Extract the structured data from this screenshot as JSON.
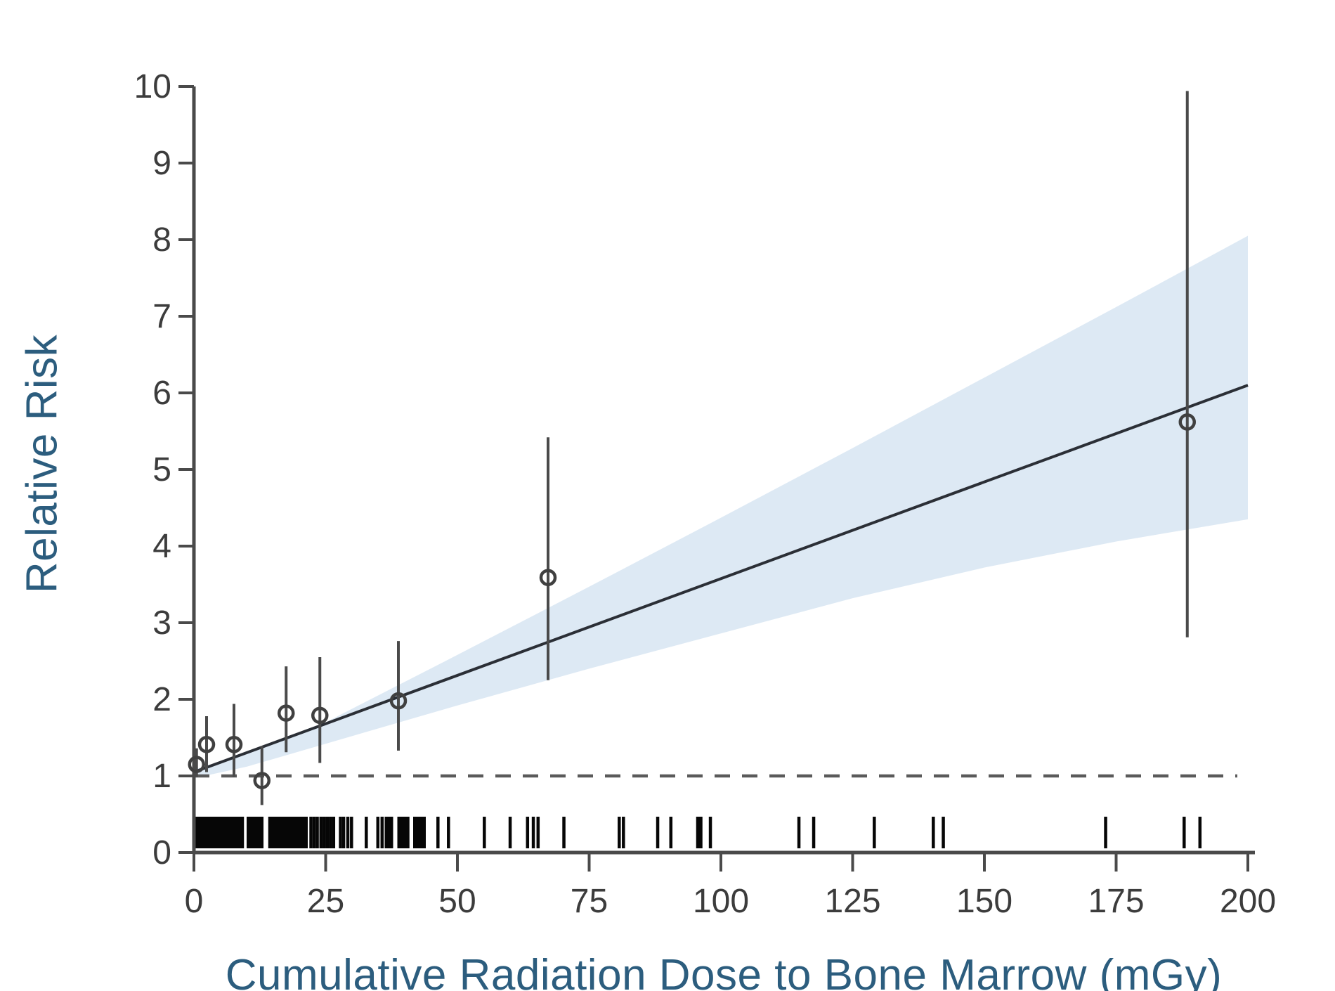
{
  "chart_data": {
    "type": "scatter",
    "title": "",
    "xlabel": "Cumulative Radiation Dose to Bone Marrow (mGy)",
    "ylabel": "Relative Risk",
    "xlim": [
      0,
      200
    ],
    "ylim": [
      0,
      10
    ],
    "x_ticks": [
      0,
      25,
      50,
      75,
      100,
      125,
      150,
      175,
      200
    ],
    "y_ticks": [
      0,
      1,
      2,
      3,
      4,
      5,
      6,
      7,
      8,
      9,
      10
    ],
    "grid": false,
    "legend": false,
    "reference_line": {
      "y": 1,
      "style": "dashed",
      "x_start": 0,
      "x_end": 198
    },
    "points": [
      {
        "x": 0.5,
        "y": 1.15,
        "ci_low": 0.99,
        "ci_high": 1.36
      },
      {
        "x": 2.4,
        "y": 1.41,
        "ci_low": 1.05,
        "ci_high": 1.78
      },
      {
        "x": 7.6,
        "y": 1.41,
        "ci_low": 0.99,
        "ci_high": 1.94
      },
      {
        "x": 12.9,
        "y": 0.94,
        "ci_low": 0.62,
        "ci_high": 1.39
      },
      {
        "x": 17.5,
        "y": 1.82,
        "ci_low": 1.31,
        "ci_high": 2.43
      },
      {
        "x": 23.9,
        "y": 1.79,
        "ci_low": 1.17,
        "ci_high": 2.55
      },
      {
        "x": 38.8,
        "y": 1.98,
        "ci_low": 1.33,
        "ci_high": 2.76
      },
      {
        "x": 67.2,
        "y": 3.59,
        "ci_low": 2.25,
        "ci_high": 5.42
      },
      {
        "x": 188.5,
        "y": 5.62,
        "ci_low": 2.81,
        "ci_high": 9.94
      }
    ],
    "fit_line": {
      "x": [
        0,
        200
      ],
      "y": [
        1.05,
        6.1
      ]
    },
    "confidence_band": {
      "x": [
        0,
        10,
        25,
        50,
        75,
        100,
        125,
        150,
        175,
        200
      ],
      "upper": [
        1.08,
        1.3,
        1.7,
        2.58,
        3.47,
        4.37,
        5.28,
        6.2,
        7.12,
        8.05
      ],
      "lower": [
        0.97,
        1.12,
        1.42,
        1.92,
        2.4,
        2.86,
        3.32,
        3.72,
        4.06,
        4.35
      ]
    },
    "rug": {
      "blocks": [
        [
          0.1,
          9.5
        ],
        [
          10.0,
          13.2
        ],
        [
          14.1,
          21.6
        ],
        [
          36.2,
          37.8
        ],
        [
          38.6,
          40.9
        ],
        [
          41.6,
          44.0
        ],
        [
          95.3,
          96.5
        ]
      ],
      "marks": [
        22.2,
        22.8,
        23.4,
        24.1,
        24.7,
        25.3,
        25.9,
        26.5,
        27.8,
        28.4,
        29.2,
        29.9,
        32.7,
        34.9,
        35.7,
        46.3,
        48.3,
        55.1,
        60.0,
        63.3,
        64.4,
        65.3,
        70.2,
        80.7,
        81.5,
        88.0,
        90.5,
        98.0,
        114.8,
        117.6,
        129.1,
        140.3,
        142.2,
        173.0,
        187.9,
        190.9
      ]
    }
  },
  "colors": {
    "band": "#dde9f4",
    "fit_line": "#2b2f36",
    "reference_line": "#5a5a5a",
    "axis": "#4a4a4a",
    "tick_label": "#3c3c3c",
    "point": "#404040",
    "error_bar": "#4a4a4a",
    "rug": "#060606",
    "title_text": "#2c5d7e",
    "background": "#ffffff"
  }
}
